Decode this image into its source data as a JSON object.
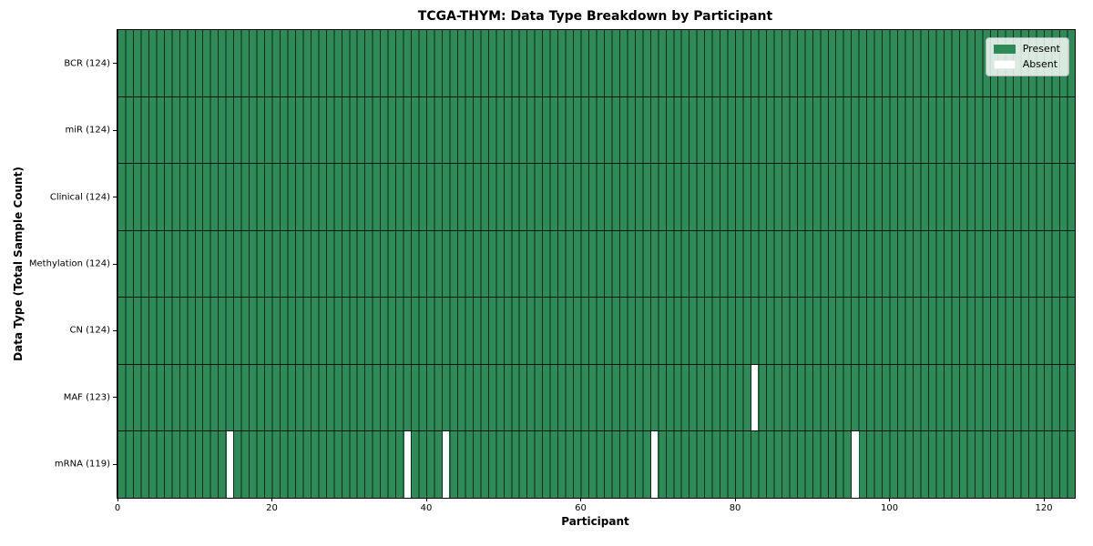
{
  "chart_data": {
    "type": "heatmap",
    "title": "TCGA-THYM: Data Type Breakdown by Participant",
    "xlabel": "Participant",
    "ylabel": "Data Type (Total Sample Count)",
    "xlim": [
      0,
      124
    ],
    "n_participants": 124,
    "x_ticks": [
      0,
      20,
      40,
      60,
      80,
      100,
      120
    ],
    "grid": true,
    "rows": [
      {
        "label": "BCR (124)",
        "data_type": "BCR",
        "present_count": 124,
        "absent_indices": []
      },
      {
        "label": "miR (124)",
        "data_type": "miR",
        "present_count": 124,
        "absent_indices": []
      },
      {
        "label": "Clinical (124)",
        "data_type": "Clinical",
        "present_count": 124,
        "absent_indices": []
      },
      {
        "label": "Methylation (124)",
        "data_type": "Methylation",
        "present_count": 124,
        "absent_indices": []
      },
      {
        "label": "CN (124)",
        "data_type": "CN",
        "present_count": 124,
        "absent_indices": []
      },
      {
        "label": "MAF (123)",
        "data_type": "MAF",
        "present_count": 123,
        "absent_indices": [
          82
        ]
      },
      {
        "label": "mRNA (119)",
        "data_type": "mRNA",
        "present_count": 119,
        "absent_indices": [
          14,
          37,
          42,
          69,
          95
        ]
      }
    ],
    "legend": {
      "position": "upper-right",
      "entries": [
        {
          "label": "Present",
          "color": "#2e8b57"
        },
        {
          "label": "Absent",
          "color": "#ffffff"
        }
      ]
    },
    "colors": {
      "present": "#2e8b57",
      "absent": "#ffffff",
      "cell_edge": "rgba(0,0,0,0.7)",
      "row_edge": "#000000",
      "spine": "#000000",
      "background": "#ffffff"
    }
  }
}
